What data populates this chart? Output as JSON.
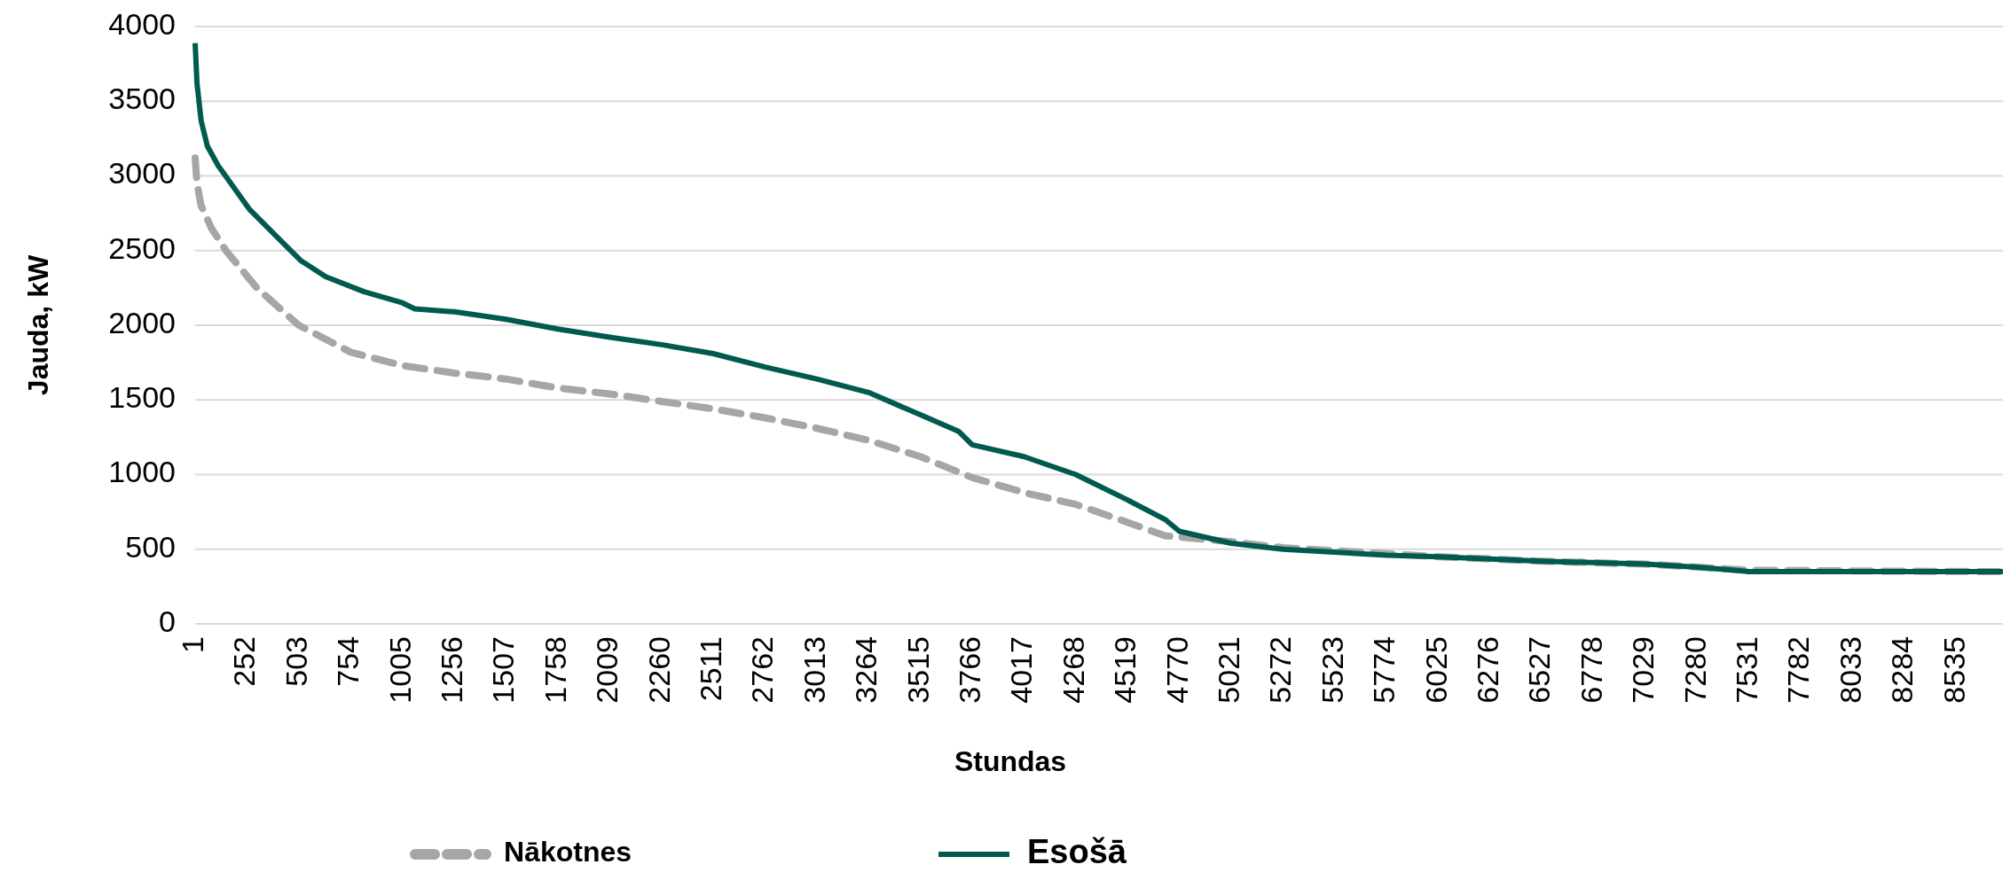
{
  "chart_data": {
    "type": "line",
    "xlabel": "Stundas",
    "ylabel": "Jauda, kW",
    "xlim": [
      1,
      8760
    ],
    "xticks": [
      1,
      252,
      503,
      754,
      1005,
      1256,
      1507,
      1758,
      2009,
      2260,
      2511,
      2762,
      3013,
      3264,
      3515,
      3766,
      4017,
      4268,
      4519,
      4770,
      5021,
      5272,
      5523,
      5774,
      6025,
      6276,
      6527,
      6778,
      7029,
      7280,
      7531,
      7782,
      8033,
      8284,
      8535
    ],
    "ylim": [
      0,
      4000
    ],
    "yticks": [
      0,
      500,
      1000,
      1500,
      2000,
      2500,
      3000,
      3500,
      4000
    ],
    "grid": "y",
    "legend": "bottom",
    "series": [
      {
        "name": "Nākotnes",
        "color": "#a6a6a6",
        "line_style": "dashed",
        "x": [
          1,
          10,
          30,
          80,
          150,
          300,
          503,
          754,
          1005,
          1256,
          1507,
          1758,
          2009,
          2260,
          2511,
          2762,
          3013,
          3264,
          3515,
          3766,
          4017,
          4268,
          4519,
          4700,
          5021,
          5272,
          5774,
          6025,
          6527,
          7029,
          7531,
          8000,
          8760
        ],
        "values": [
          3120,
          2950,
          2800,
          2650,
          2500,
          2250,
          2000,
          1820,
          1730,
          1680,
          1640,
          1580,
          1540,
          1490,
          1440,
          1380,
          1310,
          1230,
          1120,
          980,
          880,
          800,
          680,
          590,
          550,
          510,
          470,
          450,
          420,
          400,
          360,
          355,
          350
        ]
      },
      {
        "name": "Esošā",
        "color": "#005a50",
        "line_style": "solid",
        "x": [
          1,
          10,
          30,
          60,
          112,
          265,
          388,
          511,
          634,
          819,
          1005,
          1065,
          1256,
          1507,
          1758,
          2009,
          2260,
          2511,
          2762,
          3013,
          3264,
          3515,
          3700,
          3766,
          4017,
          4268,
          4519,
          4700,
          4770,
          5021,
          5272,
          5774,
          6025,
          6527,
          7029,
          7280,
          7450,
          7531,
          8000,
          8760
        ],
        "values": [
          3890,
          3620,
          3370,
          3200,
          3070,
          2775,
          2605,
          2435,
          2325,
          2225,
          2150,
          2110,
          2090,
          2040,
          1975,
          1920,
          1870,
          1810,
          1720,
          1640,
          1550,
          1400,
          1290,
          1200,
          1120,
          1000,
          830,
          700,
          620,
          540,
          500,
          460,
          450,
          420,
          400,
          380,
          360,
          350,
          350,
          350
        ]
      }
    ]
  }
}
